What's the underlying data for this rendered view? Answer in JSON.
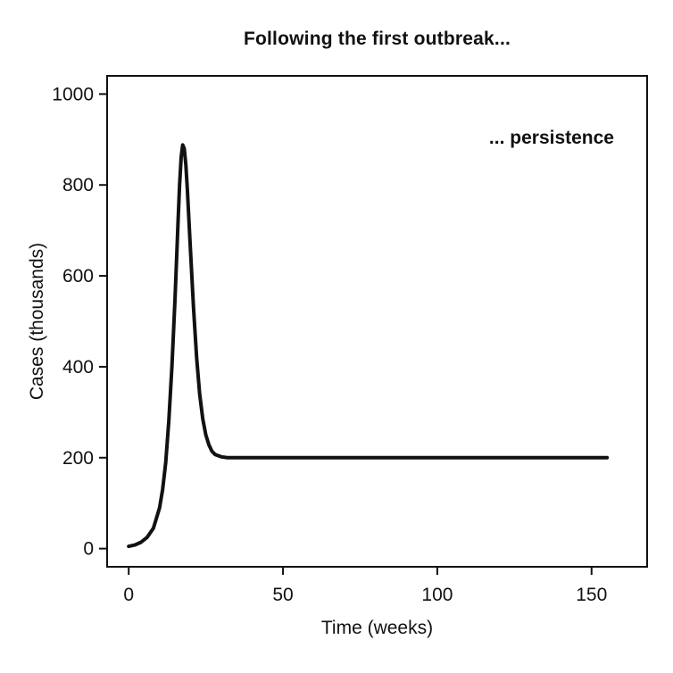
{
  "chart_data": {
    "type": "line",
    "title": "Following the first outbreak...",
    "annotation": "... persistence",
    "xlabel": "Time (weeks)",
    "ylabel": "Cases (thousands)",
    "xlim": [
      -7,
      168
    ],
    "ylim": [
      -40,
      1040
    ],
    "xticks": [
      0,
      50,
      100,
      150
    ],
    "yticks": [
      0,
      200,
      400,
      600,
      800,
      1000
    ],
    "grid": false,
    "legend": "none",
    "line_color": "#111111",
    "axis_color": "#111111",
    "text_color": "#111111",
    "points": [
      [
        0,
        5
      ],
      [
        2,
        8
      ],
      [
        4,
        14
      ],
      [
        6,
        25
      ],
      [
        8,
        45
      ],
      [
        10,
        90
      ],
      [
        11,
        130
      ],
      [
        12,
        190
      ],
      [
        13,
        280
      ],
      [
        14,
        400
      ],
      [
        15,
        550
      ],
      [
        16,
        720
      ],
      [
        16.5,
        800
      ],
      [
        17,
        862
      ],
      [
        17.5,
        888
      ],
      [
        18,
        880
      ],
      [
        18.5,
        845
      ],
      [
        19,
        790
      ],
      [
        20,
        660
      ],
      [
        21,
        530
      ],
      [
        22,
        420
      ],
      [
        23,
        340
      ],
      [
        24,
        285
      ],
      [
        25,
        250
      ],
      [
        26,
        228
      ],
      [
        27,
        214
      ],
      [
        28,
        207
      ],
      [
        30,
        202
      ],
      [
        32,
        200
      ],
      [
        35,
        200
      ],
      [
        40,
        200
      ],
      [
        50,
        200
      ],
      [
        60,
        200
      ],
      [
        80,
        200
      ],
      [
        100,
        200
      ],
      [
        120,
        200
      ],
      [
        140,
        200
      ],
      [
        155,
        200
      ]
    ]
  }
}
